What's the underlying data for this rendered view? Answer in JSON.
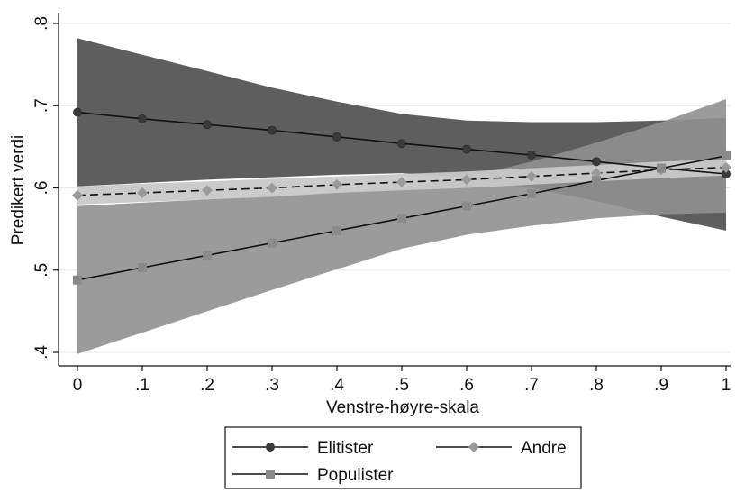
{
  "chart_data": {
    "type": "line",
    "title": "",
    "xlabel": "Venstre-høyre-skala",
    "ylabel": "Predikert verdi",
    "xlim": [
      0,
      1
    ],
    "ylim": [
      0.4,
      0.8
    ],
    "xticks": [
      0,
      0.1,
      0.2,
      0.3,
      0.4,
      0.5,
      0.6,
      0.7,
      0.8,
      0.9,
      1
    ],
    "xtick_labels": [
      "0",
      ".1",
      ".2",
      ".3",
      ".4",
      ".5",
      ".6",
      ".7",
      ".8",
      ".9",
      "1"
    ],
    "yticks": [
      0.4,
      0.5,
      0.6,
      0.7,
      0.8
    ],
    "ytick_labels": [
      ".4",
      ".5",
      ".6",
      ".7",
      ".8"
    ],
    "grid": "horizontal",
    "legend_position": "bottom",
    "x": [
      0,
      0.1,
      0.2,
      0.3,
      0.4,
      0.5,
      0.6,
      0.7,
      0.8,
      0.9,
      1
    ],
    "series": [
      {
        "name": "Elitister",
        "marker": "circle",
        "line_style": "solid",
        "marker_color": "#3a3a3a",
        "band_color": "#5e5e5e",
        "values": [
          0.692,
          0.684,
          0.677,
          0.67,
          0.662,
          0.654,
          0.647,
          0.64,
          0.632,
          0.624,
          0.617
        ],
        "ci_upper": [
          0.782,
          0.762,
          0.742,
          0.722,
          0.705,
          0.69,
          0.682,
          0.68,
          0.68,
          0.682,
          0.685
        ],
        "ci_lower": [
          0.602,
          0.606,
          0.61,
          0.613,
          0.616,
          0.618,
          0.612,
          0.6,
          0.584,
          0.565,
          0.548
        ]
      },
      {
        "name": "Andre",
        "marker": "diamond",
        "line_style": "dashed",
        "marker_color": "#9a9a9a",
        "band_color": "#c8c8c8",
        "values": [
          0.591,
          0.594,
          0.597,
          0.6,
          0.604,
          0.607,
          0.61,
          0.614,
          0.618,
          0.622,
          0.625
        ],
        "ci_upper": [
          0.602,
          0.605,
          0.608,
          0.611,
          0.614,
          0.617,
          0.62,
          0.624,
          0.628,
          0.632,
          0.635
        ],
        "ci_lower": [
          0.58,
          0.583,
          0.586,
          0.589,
          0.594,
          0.597,
          0.6,
          0.604,
          0.608,
          0.612,
          0.615
        ]
      },
      {
        "name": "Populister",
        "marker": "square",
        "line_style": "solid",
        "marker_color": "#8a8a8a",
        "band_color": "#909090",
        "values": [
          0.488,
          0.503,
          0.518,
          0.533,
          0.548,
          0.563,
          0.578,
          0.593,
          0.609,
          0.624,
          0.639
        ],
        "ci_upper": [
          0.578,
          0.582,
          0.586,
          0.59,
          0.595,
          0.6,
          0.613,
          0.632,
          0.655,
          0.68,
          0.708
        ],
        "ci_lower": [
          0.398,
          0.424,
          0.45,
          0.476,
          0.501,
          0.526,
          0.543,
          0.554,
          0.563,
          0.568,
          0.57
        ]
      }
    ]
  }
}
